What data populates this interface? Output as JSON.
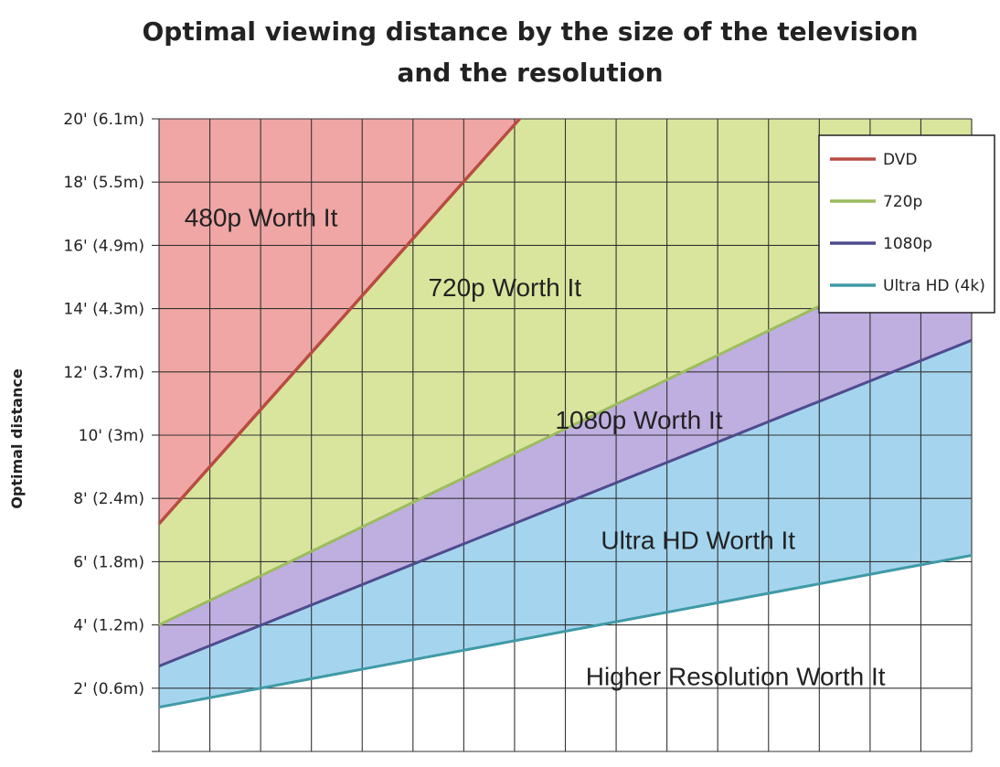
{
  "chart_data": {
    "type": "area",
    "title_lines": [
      "Optimal viewing distance by the size of the television",
      "and the resolution"
    ],
    "ylabel": "Optimal distance",
    "xlabel": "",
    "ylim": [
      0,
      20
    ],
    "xlim": [
      0,
      16
    ],
    "y_ticks": [
      {
        "value": 2,
        "label": "2' (0.6m)"
      },
      {
        "value": 4,
        "label": "4' (1.2m)"
      },
      {
        "value": 6,
        "label": "6' (1.8m)"
      },
      {
        "value": 8,
        "label": "8' (2.4m)"
      },
      {
        "value": 10,
        "label": "10' (3m)"
      },
      {
        "value": 12,
        "label": "12' (3.7m)"
      },
      {
        "value": 14,
        "label": "14' (4.3m)"
      },
      {
        "value": 16,
        "label": "16' (4.9m)"
      },
      {
        "value": 18,
        "label": "18' (5.5m)"
      },
      {
        "value": 20,
        "label": "20' (6.1m)"
      }
    ],
    "x_gridlines": 16,
    "grid": true,
    "legend_position": "top-right",
    "series": [
      {
        "name": "DVD",
        "color": "#b84c42",
        "fill": "#f0a6a4",
        "x": [
          0,
          7.1
        ],
        "y": [
          7.2,
          20
        ]
      },
      {
        "name": "720p",
        "color": "#9cbc5e",
        "fill": "#d9e59d",
        "x": [
          0,
          16
        ],
        "y": [
          4.0,
          16.4
        ]
      },
      {
        "name": "1080p",
        "color": "#4e4b8e",
        "fill": "#bfaee0",
        "x": [
          0,
          16
        ],
        "y": [
          2.7,
          13.0
        ]
      },
      {
        "name": "Ultra HD (4k)",
        "color": "#3f9aa6",
        "fill": "#a5d5ee",
        "x": [
          0,
          16
        ],
        "y": [
          1.4,
          6.2
        ]
      }
    ],
    "region_labels": [
      {
        "text": "480p Worth It",
        "x": 0.5,
        "y": 16.6
      },
      {
        "text": "720p Worth It",
        "x": 5.3,
        "y": 14.4
      },
      {
        "text": "1080p Worth It",
        "x": 7.8,
        "y": 10.2
      },
      {
        "text": "Ultra HD Worth It",
        "x": 8.7,
        "y": 6.4
      },
      {
        "text": "Higher Resolution Worth It",
        "x": 8.4,
        "y": 2.1
      }
    ]
  }
}
